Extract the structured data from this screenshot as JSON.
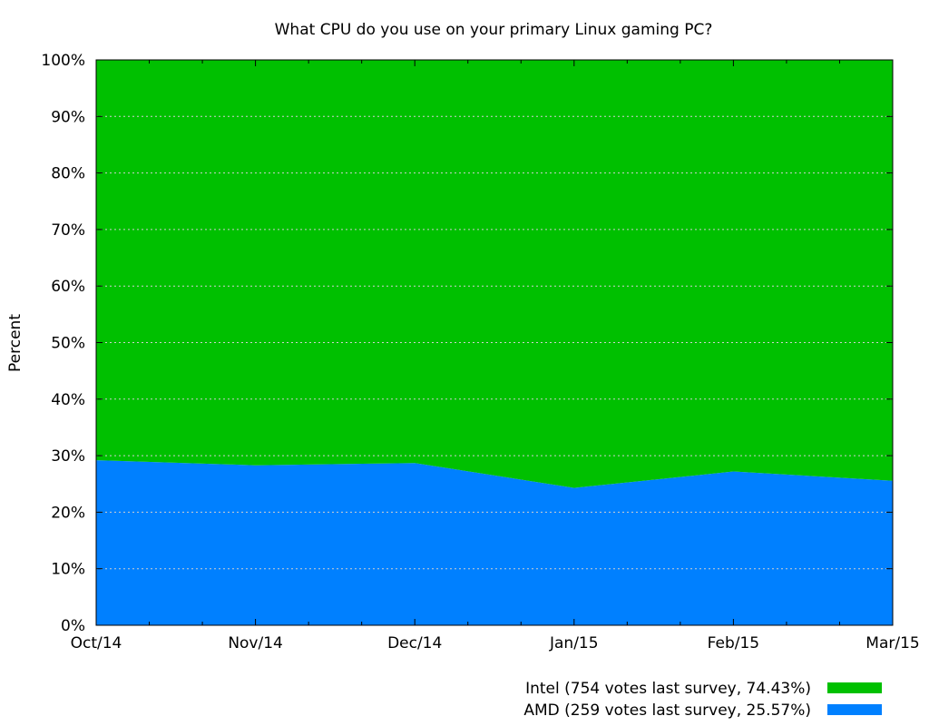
{
  "chart_data": {
    "type": "area",
    "stacked": true,
    "title": "What CPU do you use on your primary Linux gaming PC?",
    "xlabel": "",
    "ylabel": "Percent",
    "ylim": [
      0,
      100
    ],
    "y_ticks": [
      "0%",
      "10%",
      "20%",
      "30%",
      "40%",
      "50%",
      "60%",
      "70%",
      "80%",
      "90%",
      "100%"
    ],
    "categories": [
      "Oct/14",
      "Nov/14",
      "Dec/14",
      "Jan/15",
      "Feb/15",
      "Mar/15"
    ],
    "grid": true,
    "legend_position": "bottom-right",
    "series": [
      {
        "name": "AMD (259 votes last survey, 25.57%)",
        "color": "#0080ff",
        "values": [
          29.2,
          28.3,
          28.7,
          24.3,
          27.2,
          25.57
        ]
      },
      {
        "name": "Intel (754 votes last survey, 74.43%)",
        "color": "#00c000",
        "values": [
          70.8,
          71.7,
          71.3,
          75.7,
          72.8,
          74.43
        ]
      }
    ],
    "legend_order": [
      1,
      0
    ]
  }
}
